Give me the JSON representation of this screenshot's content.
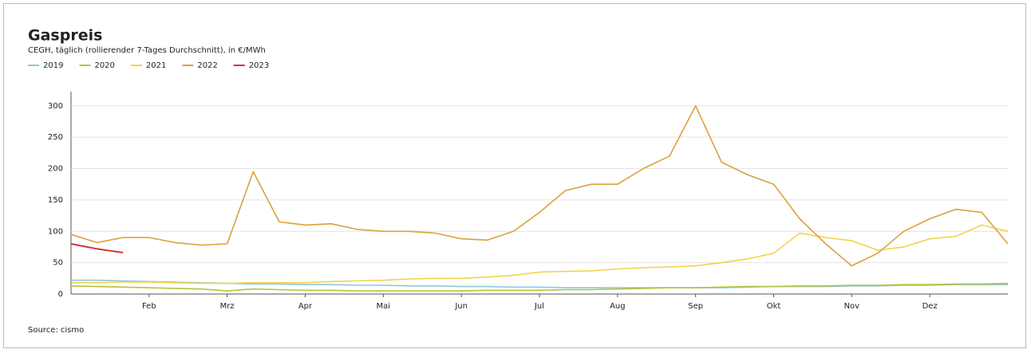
{
  "chart_data": {
    "type": "line",
    "title": "Gaspreis",
    "subtitle": "CEGH, täglich (rollierender 7-Tages Durchschnitt), in €/MWh",
    "source": "Source: cismo",
    "categories": [
      null,
      null,
      null,
      "Feb",
      null,
      null,
      "Mrz",
      null,
      null,
      "Apr",
      null,
      null,
      "Mai",
      null,
      null,
      "Jun",
      null,
      null,
      "Jul",
      null,
      null,
      "Aug",
      null,
      null,
      "Sep",
      null,
      null,
      "Okt",
      null,
      null,
      "Nov",
      null,
      null,
      "Dez",
      null,
      null,
      null
    ],
    "ylim": [
      0,
      320
    ],
    "yticks": [
      0,
      50,
      100,
      150,
      200,
      250,
      300
    ],
    "grid": true,
    "series": [
      {
        "name": "2019",
        "color": "#8ec8dc",
        "values": [
          22,
          22,
          21,
          20,
          19,
          18,
          17,
          16,
          16,
          15,
          15,
          14,
          14,
          13,
          13,
          12,
          12,
          11,
          11,
          10,
          10,
          10,
          10,
          10,
          10,
          10,
          11,
          12,
          12,
          12,
          13,
          13,
          14,
          14,
          15,
          15,
          15
        ]
      },
      {
        "name": "2020",
        "color": "#b8c23a",
        "values": [
          13,
          12,
          11,
          10,
          9,
          8,
          5,
          8,
          7,
          6,
          6,
          5,
          5,
          5,
          5,
          5,
          6,
          6,
          6,
          7,
          7,
          8,
          9,
          10,
          10,
          11,
          12,
          12,
          13,
          13,
          14,
          14,
          15,
          15,
          16,
          16,
          17
        ]
      },
      {
        "name": "2021",
        "color": "#f2d34a",
        "values": [
          18,
          18,
          19,
          19,
          18,
          17,
          17,
          18,
          18,
          18,
          20,
          21,
          22,
          24,
          25,
          25,
          27,
          30,
          35,
          36,
          37,
          40,
          42,
          43,
          45,
          50,
          56,
          65,
          97,
          90,
          85,
          70,
          75,
          88,
          92,
          110,
          100
        ]
      },
      {
        "name": "2022",
        "color": "#d9a23c",
        "values": [
          95,
          82,
          90,
          90,
          82,
          78,
          80,
          195,
          115,
          110,
          112,
          103,
          100,
          100,
          97,
          88,
          86,
          100,
          130,
          165,
          175,
          175,
          200,
          220,
          300,
          210,
          190,
          175,
          120,
          80,
          45,
          65,
          100,
          120,
          135,
          130,
          80
        ]
      },
      {
        "name": "2023",
        "color": "#d0343c",
        "values": [
          80,
          72,
          66,
          null,
          null,
          null,
          null,
          null,
          null,
          null,
          null,
          null,
          null,
          null,
          null,
          null,
          null,
          null,
          null,
          null,
          null,
          null,
          null,
          null,
          null,
          null,
          null,
          null,
          null,
          null,
          null,
          null,
          null,
          null,
          null,
          null,
          null
        ]
      }
    ]
  }
}
